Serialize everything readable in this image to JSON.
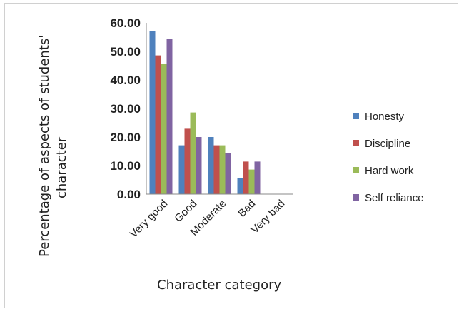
{
  "chart_data": {
    "type": "bar",
    "title": "",
    "categories": [
      "Very good",
      "Good",
      "Moderate",
      "Bad",
      "Very bad"
    ],
    "series": [
      {
        "name": "Honesty",
        "color": "#4f81bd",
        "values": [
          57.1,
          17.1,
          20.0,
          5.7,
          0
        ]
      },
      {
        "name": "Discipline",
        "color": "#c0504d",
        "values": [
          48.6,
          22.9,
          17.1,
          11.4,
          0
        ]
      },
      {
        "name": "Hard work",
        "color": "#9bbb59",
        "values": [
          45.7,
          28.6,
          17.1,
          8.6,
          0
        ]
      },
      {
        "name": "Self reliance",
        "color": "#8064a2",
        "values": [
          54.3,
          20.0,
          14.3,
          11.4,
          0
        ]
      }
    ],
    "yticks": [
      "0.00",
      "10.00",
      "20.00",
      "30.00",
      "40.00",
      "50.00",
      "60.00"
    ],
    "ylim": [
      0,
      60
    ],
    "ylabel_line1": "Percentage of aspects of students'",
    "ylabel_line2": "character",
    "xlabel": "Character category",
    "legend_position": "right",
    "grid": false
  }
}
